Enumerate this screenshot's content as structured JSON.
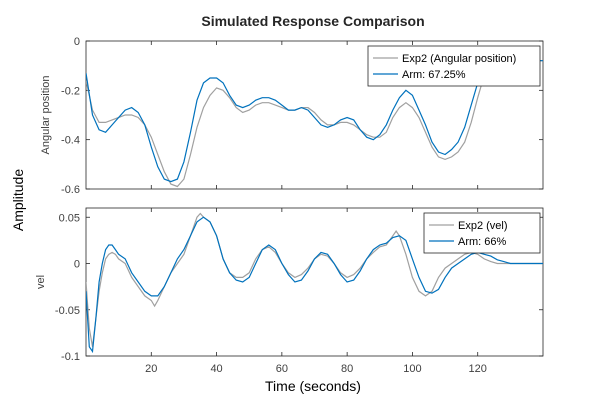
{
  "figure": {
    "title": "Simulated Response Comparison",
    "ylabel": "Amplitude",
    "xlabel": "Time (seconds)"
  },
  "chart_data": [
    {
      "type": "line",
      "ylabel": "Angular position",
      "xlim": [
        0,
        140
      ],
      "ylim": [
        -0.6,
        0
      ],
      "xticks": [
        20,
        40,
        60,
        80,
        100,
        120
      ],
      "yticks": [
        0,
        -0.2,
        -0.4,
        -0.6
      ],
      "ytick_labels": [
        "0",
        "-0.2",
        "-0.4",
        "-0.6"
      ],
      "show_xtick_labels": false,
      "legend_location": "top-right",
      "series": [
        {
          "name": "Exp2 (Angular position)",
          "color": "#a0a0a0",
          "x": [
            0,
            2,
            4,
            6,
            8,
            10,
            12,
            14,
            16,
            18,
            20,
            22,
            24,
            26,
            28,
            30,
            32,
            34,
            36,
            38,
            40,
            42,
            44,
            46,
            48,
            50,
            52,
            54,
            56,
            58,
            60,
            62,
            64,
            66,
            68,
            70,
            72,
            74,
            76,
            78,
            80,
            82,
            84,
            86,
            88,
            90,
            92,
            94,
            96,
            98,
            100,
            102,
            104,
            106,
            108,
            110,
            112,
            114,
            116,
            118,
            120,
            122,
            124,
            126,
            128,
            130,
            132,
            134,
            136,
            138,
            140
          ],
          "y": [
            -0.16,
            -0.28,
            -0.33,
            -0.33,
            -0.32,
            -0.31,
            -0.3,
            -0.3,
            -0.31,
            -0.34,
            -0.39,
            -0.46,
            -0.53,
            -0.58,
            -0.59,
            -0.56,
            -0.46,
            -0.35,
            -0.27,
            -0.22,
            -0.19,
            -0.2,
            -0.23,
            -0.27,
            -0.29,
            -0.28,
            -0.26,
            -0.25,
            -0.25,
            -0.26,
            -0.27,
            -0.28,
            -0.28,
            -0.27,
            -0.27,
            -0.29,
            -0.32,
            -0.34,
            -0.34,
            -0.33,
            -0.33,
            -0.34,
            -0.36,
            -0.38,
            -0.39,
            -0.39,
            -0.37,
            -0.31,
            -0.27,
            -0.25,
            -0.27,
            -0.31,
            -0.37,
            -0.43,
            -0.47,
            -0.48,
            -0.47,
            -0.45,
            -0.41,
            -0.33,
            -0.23,
            -0.14,
            -0.09,
            -0.08,
            -0.08,
            -0.08,
            -0.08,
            -0.08,
            -0.08,
            -0.08,
            -0.08
          ]
        },
        {
          "name": "Arm: 67.25%",
          "color": "#0072bd",
          "x": [
            0,
            2,
            4,
            6,
            8,
            10,
            12,
            14,
            16,
            18,
            20,
            22,
            24,
            26,
            28,
            30,
            32,
            34,
            36,
            38,
            40,
            42,
            44,
            46,
            48,
            50,
            52,
            54,
            56,
            58,
            60,
            62,
            64,
            66,
            68,
            70,
            72,
            74,
            76,
            78,
            80,
            82,
            84,
            86,
            88,
            90,
            92,
            94,
            96,
            98,
            100,
            102,
            104,
            106,
            108,
            110,
            112,
            114,
            116,
            118,
            120,
            122,
            124,
            126,
            128,
            130,
            132,
            134,
            136,
            138,
            140
          ],
          "y": [
            -0.13,
            -0.3,
            -0.36,
            -0.37,
            -0.34,
            -0.31,
            -0.28,
            -0.27,
            -0.29,
            -0.34,
            -0.43,
            -0.51,
            -0.56,
            -0.57,
            -0.56,
            -0.49,
            -0.37,
            -0.24,
            -0.17,
            -0.15,
            -0.15,
            -0.17,
            -0.22,
            -0.26,
            -0.27,
            -0.26,
            -0.24,
            -0.23,
            -0.23,
            -0.24,
            -0.26,
            -0.28,
            -0.28,
            -0.27,
            -0.28,
            -0.31,
            -0.34,
            -0.35,
            -0.34,
            -0.32,
            -0.31,
            -0.32,
            -0.36,
            -0.39,
            -0.4,
            -0.38,
            -0.34,
            -0.28,
            -0.23,
            -0.2,
            -0.22,
            -0.28,
            -0.34,
            -0.41,
            -0.45,
            -0.46,
            -0.44,
            -0.41,
            -0.35,
            -0.26,
            -0.17,
            -0.1,
            -0.07,
            -0.07,
            -0.08,
            -0.08,
            -0.08,
            -0.08,
            -0.08,
            -0.08,
            -0.08
          ]
        }
      ]
    },
    {
      "type": "line",
      "ylabel": "vel",
      "xlim": [
        0,
        140
      ],
      "ylim": [
        -0.1,
        0.06
      ],
      "xticks": [
        20,
        40,
        60,
        80,
        100,
        120
      ],
      "xtick_labels": [
        "20",
        "40",
        "60",
        "80",
        "100",
        "120"
      ],
      "yticks": [
        0.05,
        0,
        -0.05,
        -0.1
      ],
      "ytick_labels": [
        "0.05",
        "0",
        "-0.05",
        "-0.1"
      ],
      "show_xtick_labels": true,
      "legend_location": "top-right",
      "series": [
        {
          "name": "Exp2 (vel)",
          "color": "#a0a0a0",
          "x": [
            0,
            1,
            2,
            3,
            4,
            5,
            6,
            7,
            8,
            9,
            10,
            12,
            14,
            16,
            18,
            20,
            21,
            22,
            24,
            26,
            28,
            30,
            32,
            34,
            35,
            36,
            38,
            40,
            42,
            44,
            46,
            48,
            50,
            52,
            54,
            56,
            58,
            60,
            62,
            64,
            66,
            68,
            70,
            72,
            74,
            76,
            78,
            80,
            82,
            84,
            86,
            88,
            90,
            92,
            94,
            95,
            96,
            98,
            100,
            102,
            104,
            106,
            108,
            110,
            112,
            114,
            116,
            118,
            120,
            122,
            124,
            126,
            128,
            130,
            132,
            134,
            136,
            138,
            140
          ],
          "y": [
            -0.02,
            -0.07,
            -0.09,
            -0.06,
            -0.03,
            -0.01,
            0.005,
            0.01,
            0.012,
            0.01,
            0.005,
            0.0,
            -0.015,
            -0.025,
            -0.035,
            -0.04,
            -0.046,
            -0.04,
            -0.025,
            -0.01,
            0.0,
            0.01,
            0.03,
            0.05,
            0.054,
            0.05,
            0.045,
            0.03,
            0.005,
            -0.01,
            -0.015,
            -0.015,
            -0.01,
            0.005,
            0.015,
            0.018,
            0.012,
            0.0,
            -0.01,
            -0.015,
            -0.012,
            -0.005,
            0.005,
            0.01,
            0.008,
            0.0,
            -0.01,
            -0.015,
            -0.012,
            -0.005,
            0.005,
            0.012,
            0.018,
            0.02,
            0.03,
            0.035,
            0.03,
            0.01,
            -0.015,
            -0.03,
            -0.035,
            -0.03,
            -0.015,
            -0.005,
            0.0,
            0.005,
            0.01,
            0.012,
            0.01,
            0.005,
            0.002,
            0.0,
            0.0,
            0.0,
            0.0,
            0.0,
            0.0,
            0.0,
            0.0
          ]
        },
        {
          "name": "Arm:  66%",
          "color": "#0072bd",
          "x": [
            0,
            1,
            2,
            3,
            4,
            5,
            6,
            7,
            8,
            9,
            10,
            12,
            14,
            16,
            18,
            20,
            22,
            24,
            26,
            28,
            30,
            32,
            34,
            36,
            38,
            40,
            42,
            44,
            46,
            48,
            50,
            52,
            54,
            56,
            58,
            60,
            62,
            64,
            66,
            68,
            70,
            72,
            74,
            76,
            78,
            80,
            82,
            84,
            86,
            88,
            90,
            92,
            94,
            96,
            98,
            100,
            102,
            104,
            106,
            108,
            110,
            112,
            114,
            116,
            118,
            120,
            122,
            124,
            126,
            128,
            130,
            132,
            134,
            136,
            138,
            140
          ],
          "y": [
            -0.03,
            -0.09,
            -0.095,
            -0.06,
            -0.02,
            0.0,
            0.015,
            0.02,
            0.02,
            0.015,
            0.01,
            0.005,
            -0.01,
            -0.02,
            -0.03,
            -0.035,
            -0.035,
            -0.025,
            -0.01,
            0.005,
            0.015,
            0.03,
            0.045,
            0.05,
            0.045,
            0.03,
            0.005,
            -0.01,
            -0.018,
            -0.02,
            -0.015,
            0.0,
            0.015,
            0.02,
            0.015,
            0.0,
            -0.012,
            -0.02,
            -0.018,
            -0.008,
            0.005,
            0.012,
            0.01,
            0.0,
            -0.012,
            -0.02,
            -0.018,
            -0.008,
            0.005,
            0.015,
            0.02,
            0.022,
            0.028,
            0.03,
            0.025,
            0.005,
            -0.015,
            -0.03,
            -0.032,
            -0.028,
            -0.015,
            -0.005,
            0.0,
            0.005,
            0.01,
            0.012,
            0.01,
            0.008,
            0.004,
            0.002,
            0.0,
            0.0,
            0.0,
            0.0,
            0.0,
            0.0
          ]
        }
      ]
    }
  ]
}
